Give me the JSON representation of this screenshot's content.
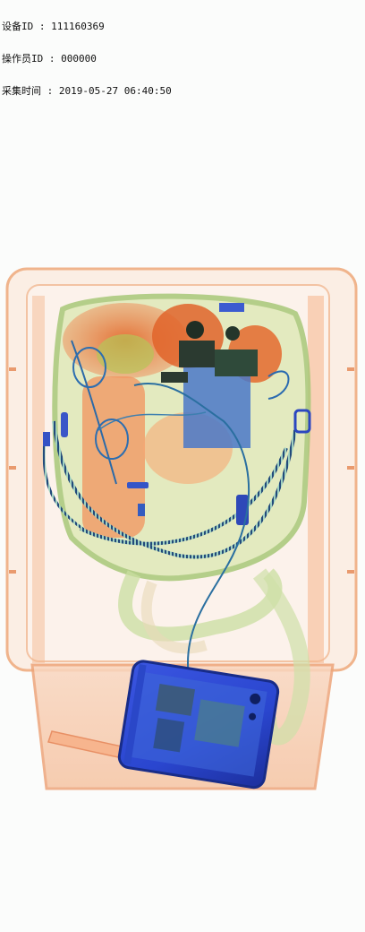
{
  "overlay": {
    "device_id": "设备ID : 111160369",
    "operator_id": "操作员ID : 000000",
    "capture_time": "采集时间 : 2019-05-27 06:40:50"
  },
  "colors": {
    "organic": "#f0a070",
    "dense_organic": "#e0642a",
    "mixed": "#8fbf50",
    "metal": "#2f4fd8",
    "dark_metal": "#1e3a2a",
    "tray": "#f7c9aa"
  },
  "icons": {
    "tray": "xray-tray",
    "bag": "xray-bag",
    "phone": "xray-phone",
    "cable": "xray-cable"
  }
}
